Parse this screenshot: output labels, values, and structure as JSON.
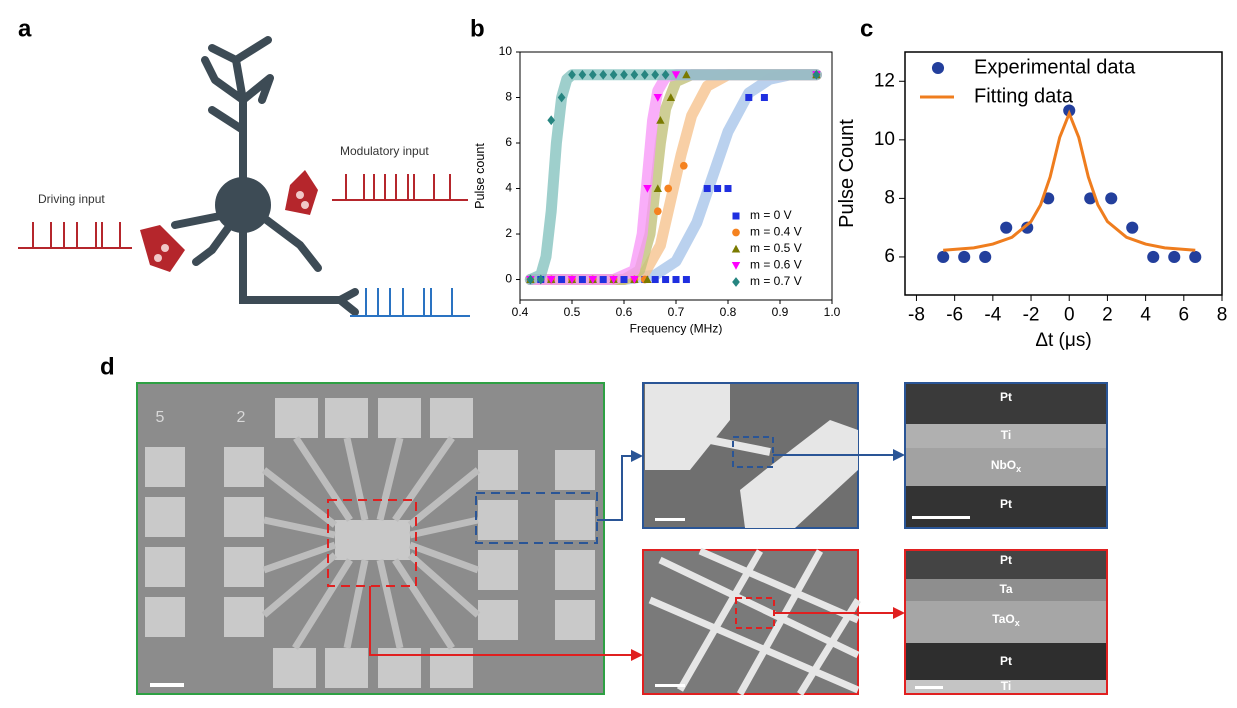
{
  "panel_labels": [
    "a",
    "b",
    "c",
    "d"
  ],
  "diagram": {
    "driving_input": "Driving input",
    "modulatory_input": "Modulatory input"
  },
  "chart_data": [
    {
      "type": "scatter",
      "x_label": "Frequency (MHz)",
      "y_label": "Pulse count",
      "xlim": [
        0.4,
        1.0
      ],
      "xticks": [
        0.4,
        0.5,
        0.6,
        0.7,
        0.8,
        0.9,
        {
          "value": 1.0,
          "label": "1.0"
        }
      ],
      "ylim": [
        -0.9,
        10
      ],
      "yticks": [
        0,
        2,
        4,
        6,
        8,
        10
      ],
      "legend": "lower right",
      "series": [
        {
          "name": "m = 0 V",
          "color": "#1f2fe0",
          "fit_color": "#a9c6ea",
          "marker": "square",
          "x": [
            0.42,
            0.44,
            0.46,
            0.48,
            0.5,
            0.52,
            0.54,
            0.56,
            0.58,
            0.6,
            0.62,
            0.64,
            0.66,
            0.68,
            0.7,
            0.72,
            0.76,
            0.78,
            0.8,
            0.84,
            0.87,
            0.97
          ],
          "values": [
            0,
            0,
            0,
            0,
            0,
            0,
            0,
            0,
            0,
            0,
            0,
            0,
            0,
            0,
            0,
            0,
            4,
            4,
            4,
            8,
            8,
            9
          ],
          "fit": {
            "x": [
              0.42,
              0.6,
              0.66,
              0.7,
              0.74,
              0.77,
              0.8,
              0.84,
              0.88,
              0.92,
              0.97
            ],
            "values": [
              0,
              0,
              0.2,
              0.8,
              2.5,
              4.5,
              6.5,
              8.2,
              8.8,
              9,
              9
            ]
          }
        },
        {
          "name": "m = 0.4 V",
          "color": "#f5821f",
          "fit_color": "#f6c38f",
          "marker": "circle",
          "x": [
            0.42,
            0.46,
            0.5,
            0.54,
            0.58,
            0.62,
            0.64,
            0.665,
            0.685,
            0.715,
            0.97
          ],
          "values": [
            0,
            0,
            0,
            0,
            0,
            0,
            0,
            3,
            4,
            5,
            9
          ],
          "fit": {
            "x": [
              0.42,
              0.6,
              0.64,
              0.67,
              0.69,
              0.71,
              0.73,
              0.76,
              0.8,
              0.97
            ],
            "values": [
              0,
              0,
              0.3,
              1.5,
              3.5,
              5.5,
              7.2,
              8.5,
              9,
              9
            ]
          }
        },
        {
          "name": "m = 0.5 V",
          "color": "#7a7a00",
          "fit_color": "#c2c27a",
          "marker": "triangle-up",
          "x": [
            0.42,
            0.46,
            0.5,
            0.54,
            0.58,
            0.62,
            0.645,
            0.665,
            0.67,
            0.69,
            0.72,
            0.97
          ],
          "values": [
            0,
            0,
            0,
            0,
            0,
            0,
            0,
            4,
            7,
            8,
            9,
            9
          ],
          "fit": {
            "x": [
              0.42,
              0.6,
              0.63,
              0.65,
              0.66,
              0.67,
              0.68,
              0.7,
              0.73,
              0.97
            ],
            "values": [
              0,
              0,
              0.4,
              2,
              4,
              6,
              7.5,
              8.7,
              9,
              9
            ]
          }
        },
        {
          "name": "m = 0.6 V",
          "color": "#ff00ff",
          "fit_color": "#f79af7",
          "marker": "triangle-down",
          "x": [
            0.42,
            0.46,
            0.5,
            0.54,
            0.58,
            0.62,
            0.645,
            0.665,
            0.7,
            0.97
          ],
          "values": [
            0,
            0,
            0,
            0,
            0,
            0,
            4,
            8,
            9,
            9
          ],
          "fit": {
            "x": [
              0.42,
              0.58,
              0.62,
              0.635,
              0.645,
              0.655,
              0.665,
              0.68,
              0.7,
              0.97
            ],
            "values": [
              0,
              0,
              0.4,
              2,
              4.5,
              7,
              8.3,
              8.9,
              9,
              9
            ]
          }
        },
        {
          "name": "m = 0.7 V",
          "color": "#268580",
          "fit_color": "#86c3bf",
          "marker": "diamond",
          "x": [
            0.42,
            0.44,
            0.46,
            0.48,
            0.5,
            0.52,
            0.54,
            0.56,
            0.58,
            0.6,
            0.62,
            0.64,
            0.66,
            0.68,
            0.97
          ],
          "values": [
            0,
            0,
            7,
            8,
            9,
            9,
            9,
            9,
            9,
            9,
            9,
            9,
            9,
            9,
            9
          ],
          "fit": {
            "x": [
              0.42,
              0.44,
              0.45,
              0.46,
              0.465,
              0.47,
              0.48,
              0.49,
              0.5,
              0.97
            ],
            "values": [
              0,
              0.2,
              1,
              3,
              4.5,
              6,
              8,
              8.8,
              9,
              9
            ]
          }
        }
      ]
    },
    {
      "type": "scatter",
      "x_label": "Δt (μs)",
      "y_label": "Pulse Count",
      "xlim": [
        -8.6,
        8.0
      ],
      "xticks": [
        -8,
        -6,
        -4,
        -2,
        0,
        2,
        4,
        6,
        8
      ],
      "ylim": [
        4.7,
        13.0
      ],
      "yticks": [
        6,
        8,
        10,
        12
      ],
      "legend": "upper left",
      "series": [
        {
          "name": "Experimental data",
          "color": "#233f9c",
          "marker": "circle",
          "x": [
            -6.6,
            -5.5,
            -4.4,
            -3.3,
            -2.2,
            -1.1,
            0,
            1.1,
            2.2,
            3.3,
            4.4,
            5.5,
            6.6
          ],
          "values": [
            6,
            6,
            6,
            7,
            7,
            8,
            11,
            8,
            8,
            7,
            6,
            6,
            6
          ]
        },
        {
          "name": "Fitting data",
          "color": "#ef7d1e",
          "type": "line",
          "x": [
            -6.6,
            -5,
            -4,
            -3,
            -2,
            -1.5,
            -1,
            -0.5,
            0,
            0.5,
            1,
            1.5,
            2,
            3,
            4,
            5,
            6.6
          ],
          "values": [
            6.23,
            6.31,
            6.44,
            6.67,
            7.21,
            7.78,
            8.73,
            10.08,
            10.9,
            10.08,
            8.73,
            7.78,
            7.21,
            6.67,
            6.44,
            6.31,
            6.23
          ]
        }
      ]
    }
  ],
  "micrographs": {
    "chip_marks": [
      "5",
      "2"
    ],
    "nbox_layers": [
      {
        "text": "Pt"
      },
      {
        "text": "Ti"
      },
      {
        "text": "NbO",
        "sub": "x"
      },
      {
        "text": "Pt"
      }
    ],
    "taox_layers": [
      {
        "text": "Pt"
      },
      {
        "text": "Ta"
      },
      {
        "text": "TaO",
        "sub": "x"
      },
      {
        "text": "Pt"
      },
      {
        "text": "Ti"
      }
    ]
  }
}
